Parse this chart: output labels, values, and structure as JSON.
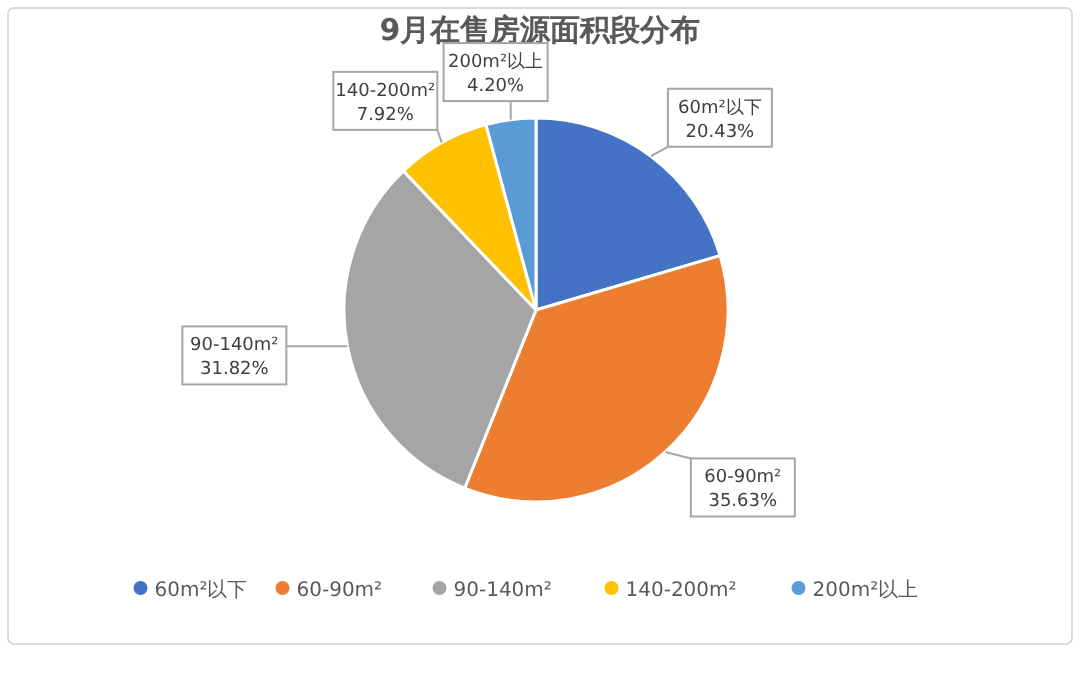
{
  "chart_data": {
    "type": "pie",
    "title": "9月在售房源面积段分布",
    "categories": [
      "60m²以下",
      "60-90m²",
      "90-140m²",
      "140-200m²",
      "200m²以上"
    ],
    "values": [
      20.43,
      35.63,
      31.82,
      7.92,
      4.2
    ],
    "value_labels": [
      "20.43%",
      "35.63%",
      "31.82%",
      "7.92%",
      "4.20%"
    ],
    "colors": [
      "#4472c4",
      "#ed7d31",
      "#a5a5a5",
      "#ffc000",
      "#5b9bd5"
    ],
    "legend": "bottom"
  }
}
